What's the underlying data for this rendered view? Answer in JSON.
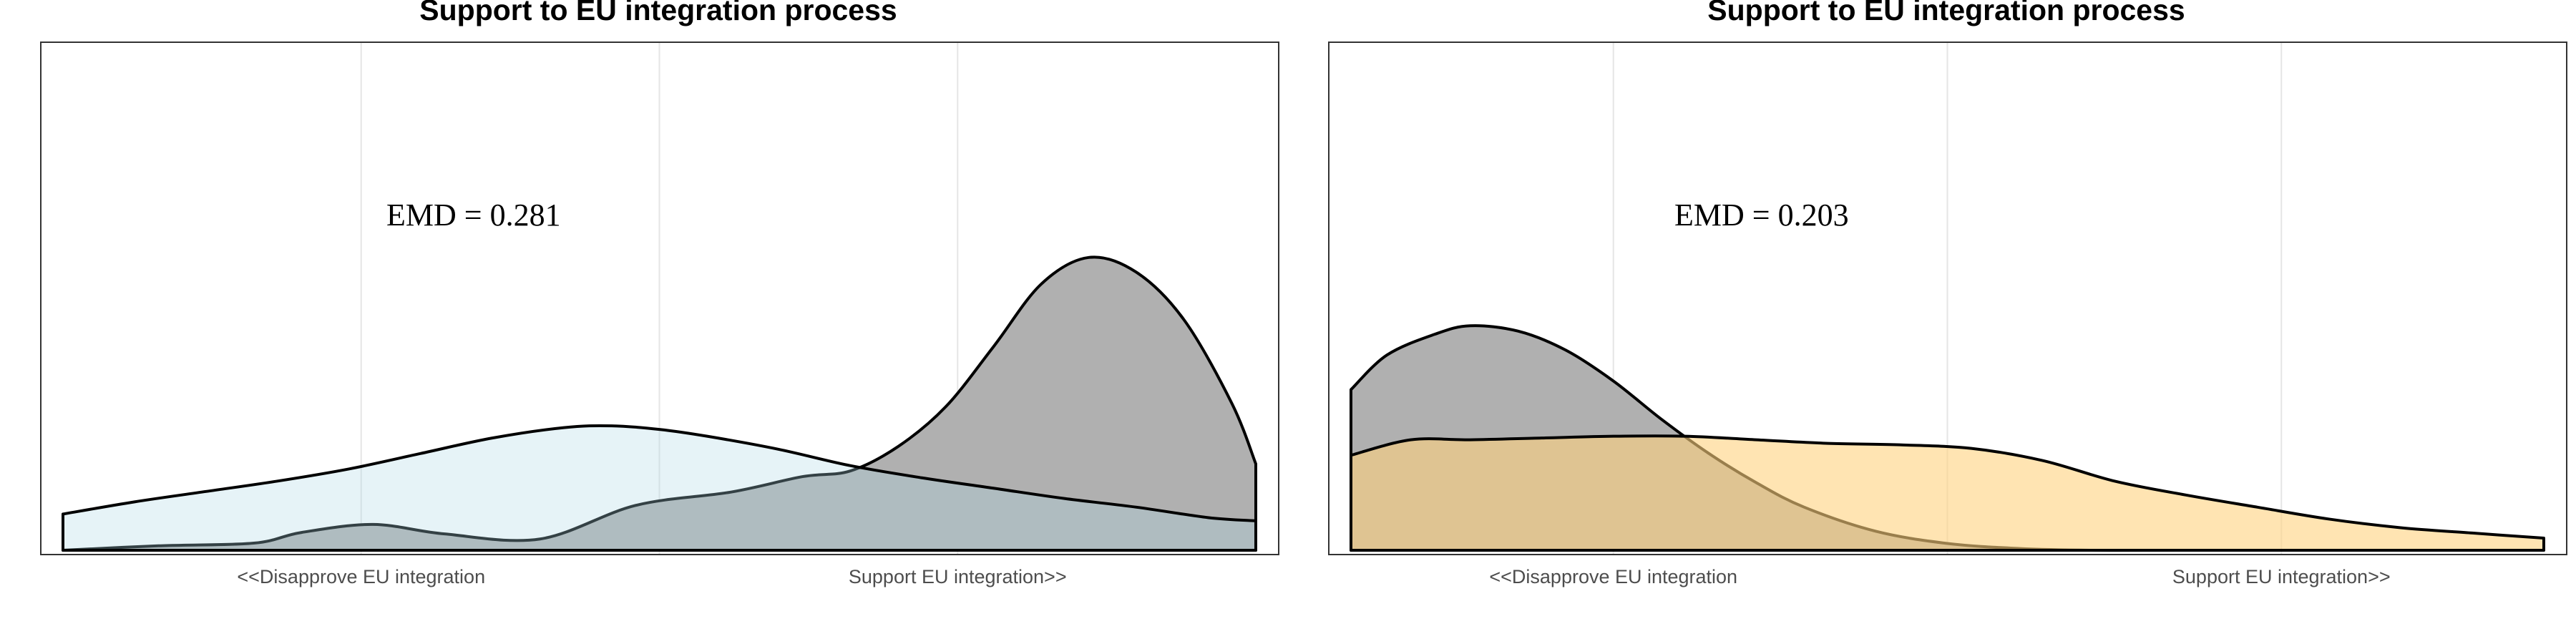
{
  "chart_data": [
    {
      "type": "area",
      "title": "Support to EU integration process",
      "x_tick_labels": [
        "<<Disapprove EU integration",
        "Support EU integration>>"
      ],
      "x_ticks": [
        0.25,
        0.75
      ],
      "xlim": [
        0,
        1
      ],
      "ylim": [
        0,
        1
      ],
      "annotation": "EMD = 0.281",
      "grid": true,
      "series": [
        {
          "fill": "#b0b0b0",
          "alpha": 1,
          "x": [
            0,
            0.08,
            0.16,
            0.2,
            0.26,
            0.32,
            0.4,
            0.48,
            0.56,
            0.62,
            0.66,
            0.7,
            0.74,
            0.78,
            0.82,
            0.86,
            0.9,
            0.94,
            0.98,
            1
          ],
          "y": [
            0.0,
            0.015,
            0.024,
            0.06,
            0.087,
            0.055,
            0.038,
            0.151,
            0.196,
            0.248,
            0.267,
            0.349,
            0.483,
            0.685,
            0.896,
            0.986,
            0.936,
            0.775,
            0.494,
            0.291
          ]
        },
        {
          "fill": "#add8e6",
          "alpha": 0.3,
          "x": [
            0,
            0.06,
            0.12,
            0.18,
            0.24,
            0.3,
            0.36,
            0.42,
            0.46,
            0.5,
            0.54,
            0.6,
            0.66,
            0.72,
            0.78,
            0.84,
            0.9,
            0.96,
            1
          ],
          "y": [
            0.122,
            0.163,
            0.198,
            0.233,
            0.274,
            0.326,
            0.378,
            0.413,
            0.419,
            0.407,
            0.384,
            0.34,
            0.285,
            0.244,
            0.209,
            0.174,
            0.145,
            0.11,
            0.099
          ]
        }
      ]
    },
    {
      "type": "area",
      "title": "Support to EU integration process",
      "x_tick_labels": [
        "<<Disapprove EU integration",
        "Support EU integration>>"
      ],
      "x_ticks": [
        0.22,
        0.78
      ],
      "xlim": [
        0,
        1
      ],
      "ylim": [
        0,
        1
      ],
      "annotation": "EMD = 0.203",
      "grid": true,
      "series": [
        {
          "fill": "#b0b0b0",
          "alpha": 1,
          "x": [
            0,
            0.03,
            0.07,
            0.1,
            0.14,
            0.18,
            0.22,
            0.26,
            0.3,
            0.34,
            0.38,
            0.44,
            0.5,
            0.56,
            0.62,
            0.7,
            1
          ],
          "y": [
            0.541,
            0.657,
            0.727,
            0.756,
            0.738,
            0.674,
            0.57,
            0.442,
            0.326,
            0.227,
            0.145,
            0.064,
            0.023,
            0.006,
            0.0,
            0.0,
            0.0
          ]
        },
        {
          "fill": "#ffd27f",
          "alpha": 0.6,
          "x": [
            0,
            0.05,
            0.1,
            0.16,
            0.22,
            0.28,
            0.34,
            0.4,
            0.46,
            0.52,
            0.58,
            0.64,
            0.7,
            0.76,
            0.82,
            0.88,
            0.94,
            1
          ],
          "y": [
            0.32,
            0.372,
            0.372,
            0.378,
            0.384,
            0.384,
            0.372,
            0.36,
            0.355,
            0.343,
            0.302,
            0.233,
            0.186,
            0.145,
            0.105,
            0.076,
            0.058,
            0.041
          ]
        }
      ]
    }
  ]
}
